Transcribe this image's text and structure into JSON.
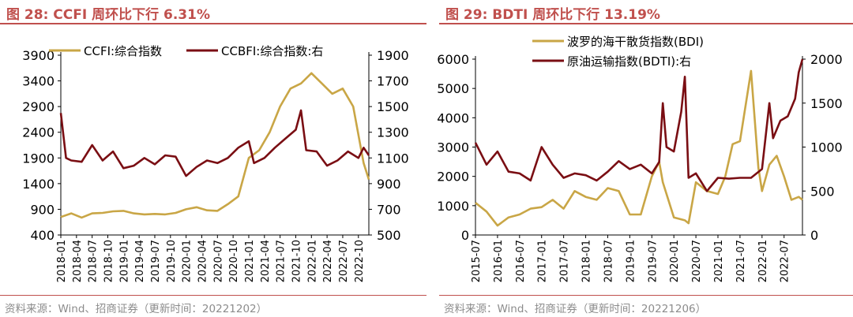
{
  "colors": {
    "title": "#c0504d",
    "gold": "#c9a646",
    "darkred": "#7a0e13",
    "axis": "#000000",
    "source": "#8c8c8c"
  },
  "left": {
    "title": "图 28:  CCFI 周环比下行 6.31%",
    "source": "资料来源：Wind、招商证券（更新时间：20221202）"
  },
  "right": {
    "title": "图 29:  BDTI 周环比下行 13.19%",
    "source": "资料来源：Wind、招商证券（更新时间：20221206）"
  },
  "chart_data": [
    {
      "type": "line",
      "y_ticks": [
        400,
        900,
        1400,
        1900,
        2400,
        2900,
        3400,
        3900
      ],
      "ylim": [
        400,
        3900
      ],
      "y2_ticks": [
        500,
        700,
        900,
        1100,
        1300,
        1500,
        1700,
        1900
      ],
      "y2lim": [
        500,
        1900
      ],
      "x_ticks": [
        "2018-01",
        "2018-04",
        "2018-07",
        "2018-10",
        "2019-01",
        "2019-04",
        "2019-07",
        "2019-10",
        "2020-01",
        "2020-04",
        "2020-07",
        "2020-10",
        "2021-01",
        "2021-04",
        "2021-07",
        "2021-10",
        "2022-01",
        "2022-04",
        "2022-07",
        "2022-10"
      ],
      "x_start": "2018-01",
      "x_end": "2022-12",
      "legend_position": "top",
      "series": [
        {
          "name": "CCFI:综合指数",
          "axis": "left",
          "color": "#c9a646",
          "x": [
            "2018-01",
            "2018-03",
            "2018-05",
            "2018-07",
            "2018-09",
            "2018-11",
            "2019-01",
            "2019-03",
            "2019-05",
            "2019-07",
            "2019-09",
            "2019-11",
            "2020-01",
            "2020-03",
            "2020-05",
            "2020-07",
            "2020-09",
            "2020-11",
            "2021-01",
            "2021-03",
            "2021-05",
            "2021-07",
            "2021-09",
            "2021-11",
            "2022-01",
            "2022-03",
            "2022-05",
            "2022-07",
            "2022-09",
            "2022-11",
            "2022-12"
          ],
          "values": [
            750,
            820,
            740,
            820,
            830,
            860,
            870,
            820,
            800,
            810,
            800,
            830,
            900,
            940,
            880,
            870,
            1000,
            1150,
            1900,
            2050,
            2400,
            2900,
            3250,
            3350,
            3550,
            3350,
            3150,
            3250,
            2900,
            1800,
            1480
          ]
        },
        {
          "name": "CCBFI:综合指数:右",
          "axis": "right",
          "color": "#7a0e13",
          "x": [
            "2018-01",
            "2018-02",
            "2018-03",
            "2018-05",
            "2018-07",
            "2018-09",
            "2018-11",
            "2019-01",
            "2019-03",
            "2019-05",
            "2019-07",
            "2019-09",
            "2019-11",
            "2020-01",
            "2020-03",
            "2020-05",
            "2020-07",
            "2020-09",
            "2020-11",
            "2021-01",
            "2021-02",
            "2021-04",
            "2021-06",
            "2021-08",
            "2021-10",
            "2021-11",
            "2021-12",
            "2022-02",
            "2022-04",
            "2022-06",
            "2022-08",
            "2022-10",
            "2022-11",
            "2022-12"
          ],
          "values": [
            1450,
            1100,
            1080,
            1070,
            1200,
            1080,
            1150,
            1020,
            1040,
            1100,
            1050,
            1120,
            1110,
            960,
            1030,
            1080,
            1060,
            1100,
            1180,
            1230,
            1060,
            1100,
            1180,
            1250,
            1320,
            1470,
            1160,
            1150,
            1040,
            1080,
            1150,
            1100,
            1180,
            1120
          ]
        }
      ]
    },
    {
      "type": "line",
      "y_ticks": [
        0,
        1000,
        2000,
        3000,
        4000,
        5000,
        6000
      ],
      "ylim": [
        0,
        6000
      ],
      "y2_ticks": [
        0,
        500,
        1000,
        1500,
        2000
      ],
      "y2lim": [
        0,
        2000
      ],
      "x_ticks": [
        "2015-07",
        "2016-01",
        "2016-07",
        "2017-01",
        "2017-07",
        "2018-01",
        "2018-07",
        "2019-01",
        "2019-07",
        "2020-01",
        "2020-07",
        "2021-01",
        "2021-07",
        "2022-01",
        "2022-07"
      ],
      "x_start": "2015-07",
      "x_end": "2022-12",
      "legend_position": "top",
      "series": [
        {
          "name": "波罗的海干散货指数(BDI)",
          "axis": "left",
          "color": "#c9a646",
          "x": [
            "2015-07",
            "2015-10",
            "2016-01",
            "2016-04",
            "2016-07",
            "2016-10",
            "2017-01",
            "2017-04",
            "2017-07",
            "2017-10",
            "2018-01",
            "2018-04",
            "2018-07",
            "2018-10",
            "2019-01",
            "2019-04",
            "2019-07",
            "2019-09",
            "2019-10",
            "2020-01",
            "2020-04",
            "2020-05",
            "2020-07",
            "2020-10",
            "2021-01",
            "2021-03",
            "2021-05",
            "2021-07",
            "2021-10",
            "2021-12",
            "2022-01",
            "2022-03",
            "2022-05",
            "2022-07",
            "2022-09",
            "2022-11",
            "2022-12"
          ],
          "values": [
            1100,
            800,
            320,
            600,
            700,
            900,
            950,
            1200,
            900,
            1500,
            1300,
            1200,
            1600,
            1500,
            700,
            700,
            2000,
            2500,
            1800,
            600,
            500,
            400,
            1800,
            1500,
            1400,
            2000,
            3100,
            3200,
            5600,
            2300,
            1500,
            2400,
            2700,
            2000,
            1200,
            1300,
            1200
          ]
        },
        {
          "name": "原油运输指数(BDTI):右",
          "axis": "right",
          "color": "#7a0e13",
          "x": [
            "2015-07",
            "2015-10",
            "2016-01",
            "2016-04",
            "2016-07",
            "2016-10",
            "2017-01",
            "2017-04",
            "2017-07",
            "2017-10",
            "2018-01",
            "2018-04",
            "2018-07",
            "2018-10",
            "2019-01",
            "2019-04",
            "2019-07",
            "2019-09",
            "2019-10",
            "2019-11",
            "2020-01",
            "2020-03",
            "2020-04",
            "2020-05",
            "2020-07",
            "2020-10",
            "2021-01",
            "2021-04",
            "2021-07",
            "2021-10",
            "2022-01",
            "2022-03",
            "2022-04",
            "2022-06",
            "2022-08",
            "2022-10",
            "2022-11",
            "2022-12"
          ],
          "values": [
            1050,
            800,
            950,
            720,
            700,
            620,
            1000,
            800,
            650,
            700,
            680,
            620,
            720,
            840,
            750,
            800,
            700,
            830,
            1500,
            1000,
            950,
            1400,
            1800,
            650,
            700,
            500,
            650,
            640,
            650,
            650,
            750,
            1500,
            1100,
            1300,
            1350,
            1550,
            1850,
            2000
          ]
        }
      ]
    }
  ]
}
